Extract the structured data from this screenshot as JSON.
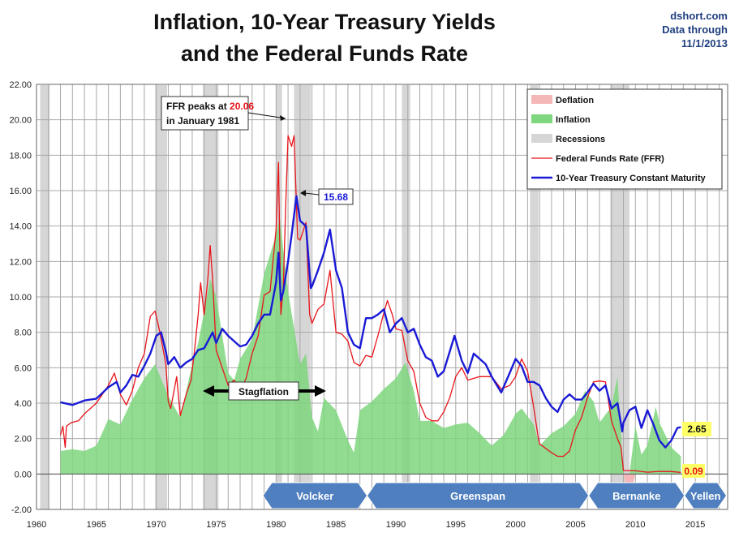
{
  "header": {
    "title_line1": "Inflation, 10-Year Treasury Yields",
    "title_line2": "and the Federal Funds Rate",
    "source_line1": "dshort.com",
    "source_line2": "Data through",
    "source_line3": "11/1/2013"
  },
  "colors": {
    "deflation": "#f4b6b6",
    "inflation": "#7ed67e",
    "recession": "#d6d6d6",
    "ffr": "#e8141a",
    "treasury": "#1a1ad6",
    "arrow": "#4f7fbf",
    "callout_yellow": "#ffff66"
  },
  "chart_data": {
    "type": "line",
    "title": "Inflation, 10-Year Treasury Yields and the Federal Funds Rate",
    "xlim": [
      1960,
      2017.7
    ],
    "ylim": [
      -2,
      22
    ],
    "x_ticks": [
      "1960",
      "1965",
      "1970",
      "1975",
      "1980",
      "1985",
      "1990",
      "1995",
      "2000",
      "2005",
      "2010",
      "2015"
    ],
    "y_ticks": [
      "-2.00",
      "0.00",
      "2.00",
      "4.00",
      "6.00",
      "8.00",
      "10.00",
      "12.00",
      "14.00",
      "16.00",
      "18.00",
      "20.00",
      "22.00"
    ],
    "grid": true,
    "legend_position": "top-right",
    "legend": [
      "Deflation",
      "Inflation",
      "Recessions",
      "Federal Funds Rate (FFR)",
      "10-Year Treasury Constant Maturity"
    ],
    "recessions": [
      [
        1960.3,
        1961.1
      ],
      [
        1969.9,
        1970.9
      ],
      [
        1973.9,
        1975.2
      ],
      [
        1980.0,
        1980.5
      ],
      [
        1981.5,
        1982.9
      ],
      [
        1990.5,
        1991.2
      ],
      [
        2001.2,
        2001.9
      ],
      [
        2007.9,
        2009.5
      ]
    ],
    "series": [
      {
        "name": "Federal Funds Rate (FFR)",
        "x": [
          1962.0,
          1962.2,
          1962.4,
          1962.5,
          1962.9,
          1963.5,
          1964.0,
          1965.0,
          1966.0,
          1966.5,
          1967.0,
          1967.5,
          1968.0,
          1968.5,
          1969.0,
          1969.5,
          1969.9,
          1970.3,
          1970.8,
          1971.0,
          1971.2,
          1971.7,
          1972.0,
          1972.5,
          1972.9,
          1973.2,
          1973.5,
          1973.7,
          1974.0,
          1974.3,
          1974.5,
          1974.7,
          1975.0,
          1975.5,
          1976.0,
          1976.5,
          1977.0,
          1977.5,
          1978.0,
          1978.5,
          1979.0,
          1979.5,
          1980.0,
          1980.2,
          1980.4,
          1980.6,
          1980.8,
          1981.0,
          1981.3,
          1981.5,
          1981.8,
          1982.0,
          1982.5,
          1982.8,
          1983.0,
          1983.5,
          1984.0,
          1984.5,
          1984.8,
          1985.0,
          1985.5,
          1986.0,
          1986.5,
          1987.0,
          1987.5,
          1988.0,
          1988.5,
          1989.0,
          1989.3,
          1989.7,
          1990.0,
          1990.5,
          1991.0,
          1991.5,
          1992.0,
          1992.5,
          1993.0,
          1993.5,
          1994.0,
          1994.5,
          1995.0,
          1995.5,
          1996.0,
          1997.0,
          1998.0,
          1998.8,
          1999.5,
          2000.0,
          2000.5,
          2001.0,
          2001.5,
          2001.9,
          2002.0,
          2003.0,
          2003.5,
          2004.0,
          2004.5,
          2005.0,
          2005.5,
          2006.0,
          2006.5,
          2007.0,
          2007.5,
          2008.0,
          2008.5,
          2008.8,
          2009.0,
          2010.0,
          2011.0,
          2012.0,
          2013.0,
          2013.8
        ],
        "values": [
          2.2,
          2.7,
          1.5,
          2.7,
          2.9,
          3.0,
          3.4,
          4.0,
          5.0,
          5.7,
          4.5,
          3.9,
          4.7,
          6.0,
          6.8,
          8.9,
          9.2,
          8.0,
          6.2,
          4.1,
          3.7,
          5.5,
          3.3,
          4.5,
          5.3,
          7.0,
          9.0,
          10.8,
          9.0,
          11.0,
          12.9,
          11.0,
          7.0,
          6.0,
          5.0,
          5.3,
          4.7,
          5.4,
          6.8,
          7.8,
          10.1,
          10.3,
          13.8,
          17.6,
          9.0,
          10.5,
          15.0,
          19.1,
          18.5,
          19.1,
          13.3,
          13.2,
          14.2,
          9.0,
          8.5,
          9.3,
          9.6,
          11.5,
          9.4,
          8.0,
          7.9,
          7.5,
          6.3,
          6.1,
          6.7,
          6.6,
          7.8,
          9.1,
          9.8,
          9.0,
          8.2,
          8.1,
          6.4,
          5.8,
          4.0,
          3.2,
          3.0,
          3.0,
          3.5,
          4.3,
          5.5,
          6.0,
          5.3,
          5.5,
          5.5,
          4.8,
          5.0,
          5.5,
          6.5,
          5.8,
          3.8,
          2.0,
          1.7,
          1.2,
          1.0,
          1.0,
          1.3,
          2.5,
          3.2,
          4.3,
          5.2,
          5.25,
          5.2,
          3.0,
          2.0,
          1.5,
          0.2,
          0.18,
          0.1,
          0.15,
          0.14,
          0.09
        ]
      },
      {
        "name": "10-Year Treasury Constant Maturity",
        "x": [
          1962.0,
          1963.0,
          1964.0,
          1965.0,
          1966.0,
          1966.7,
          1967.0,
          1967.5,
          1968.0,
          1968.5,
          1969.0,
          1969.5,
          1970.0,
          1970.4,
          1970.8,
          1971.0,
          1971.5,
          1972.0,
          1972.5,
          1973.0,
          1973.5,
          1974.0,
          1974.7,
          1975.0,
          1975.5,
          1976.0,
          1976.5,
          1977.0,
          1977.5,
          1978.0,
          1978.5,
          1979.0,
          1979.5,
          1980.0,
          1980.2,
          1980.4,
          1980.6,
          1981.0,
          1981.3,
          1981.7,
          1982.0,
          1982.5,
          1982.9,
          1983.0,
          1983.5,
          1984.0,
          1984.5,
          1985.0,
          1985.5,
          1986.0,
          1986.5,
          1987.0,
          1987.5,
          1988.0,
          1988.5,
          1989.0,
          1989.5,
          1990.0,
          1990.5,
          1991.0,
          1991.5,
          1992.0,
          1992.5,
          1993.0,
          1993.5,
          1994.0,
          1994.9,
          1995.5,
          1996.0,
          1996.5,
          1997.0,
          1997.5,
          1998.0,
          1998.8,
          1999.5,
          2000.0,
          2000.5,
          2001.0,
          2001.5,
          2002.0,
          2002.5,
          2003.0,
          2003.5,
          2004.0,
          2004.5,
          2005.0,
          2005.5,
          2006.0,
          2006.5,
          2007.0,
          2007.5,
          2008.0,
          2008.5,
          2008.9,
          2009.0,
          2009.5,
          2010.0,
          2010.5,
          2011.0,
          2011.5,
          2012.0,
          2012.5,
          2013.0,
          2013.5,
          2013.8
        ],
        "values": [
          4.05,
          3.9,
          4.15,
          4.25,
          4.9,
          5.2,
          4.6,
          5.0,
          5.6,
          5.5,
          6.1,
          6.8,
          7.8,
          8.0,
          6.9,
          6.2,
          6.6,
          6.0,
          6.3,
          6.5,
          7.0,
          7.1,
          8.0,
          7.4,
          8.2,
          7.8,
          7.5,
          7.2,
          7.3,
          7.8,
          8.5,
          9.0,
          9.0,
          10.8,
          12.5,
          9.8,
          10.3,
          12.0,
          13.5,
          15.68,
          14.3,
          14.0,
          10.5,
          10.6,
          11.5,
          12.5,
          13.8,
          11.5,
          10.5,
          8.0,
          7.3,
          7.1,
          8.8,
          8.8,
          9.0,
          9.3,
          8.0,
          8.5,
          8.8,
          8.0,
          8.2,
          7.3,
          6.6,
          6.4,
          5.5,
          5.8,
          7.8,
          6.4,
          5.7,
          6.8,
          6.5,
          6.2,
          5.5,
          4.6,
          5.7,
          6.5,
          6.1,
          5.2,
          5.2,
          5.0,
          4.3,
          3.8,
          3.5,
          4.2,
          4.5,
          4.2,
          4.2,
          4.6,
          5.1,
          4.7,
          5.0,
          3.7,
          4.0,
          2.4,
          2.9,
          3.6,
          3.8,
          2.6,
          3.6,
          2.8,
          1.9,
          1.5,
          1.9,
          2.6,
          2.65
        ]
      },
      {
        "name": "Inflation",
        "x": [
          1962.0,
          1963.0,
          1964.0,
          1965.0,
          1966.0,
          1967.0,
          1968.0,
          1969.0,
          1969.9,
          1971.0,
          1972.0,
          1973.0,
          1973.5,
          1974.5,
          1975.0,
          1976.0,
          1976.5,
          1977.0,
          1978.0,
          1979.0,
          1980.0,
          1980.3,
          1981.0,
          1982.0,
          1982.5,
          1983.0,
          1983.5,
          1984.0,
          1985.0,
          1986.0,
          1986.5,
          1987.0,
          1988.0,
          1989.0,
          1990.0,
          1990.8,
          1991.5,
          1992.0,
          1993.0,
          1994.0,
          1995.0,
          1996.0,
          1997.0,
          1998.0,
          1999.0,
          2000.0,
          2000.5,
          2001.5,
          2002.0,
          2003.0,
          2004.0,
          2005.0,
          2005.8,
          2006.5,
          2007.0,
          2008.0,
          2008.5,
          2009.0,
          2009.5,
          2010.0,
          2010.5,
          2011.0,
          2011.7,
          2012.0,
          2013.0,
          2013.8
        ],
        "values": [
          1.3,
          1.4,
          1.3,
          1.6,
          3.1,
          2.8,
          4.2,
          5.4,
          6.2,
          4.4,
          3.2,
          6.2,
          7.4,
          11.0,
          10.0,
          5.7,
          5.3,
          6.5,
          7.6,
          11.3,
          13.5,
          14.5,
          10.3,
          6.2,
          6.8,
          3.2,
          2.4,
          4.3,
          3.6,
          1.9,
          1.2,
          3.6,
          4.1,
          4.8,
          5.4,
          6.3,
          4.7,
          3.0,
          3.0,
          2.6,
          2.8,
          2.9,
          2.3,
          1.6,
          2.2,
          3.4,
          3.7,
          2.8,
          1.6,
          2.3,
          2.7,
          3.4,
          4.7,
          4.1,
          2.9,
          3.8,
          5.5,
          0.0,
          -1.5,
          2.7,
          1.1,
          1.6,
          3.8,
          2.9,
          1.5,
          1.0
        ]
      }
    ],
    "annotations": [
      {
        "text_pre": "FFR peaks at ",
        "value": "20.06",
        "text_post": "in January 1981"
      },
      {
        "text": "15.68"
      },
      {
        "text": "Stagflation"
      },
      {
        "text": "2.65"
      },
      {
        "text": "0.09"
      }
    ],
    "fed_chairs": [
      "Volcker",
      "Greenspan",
      "Bernanke",
      "Yellen"
    ]
  }
}
